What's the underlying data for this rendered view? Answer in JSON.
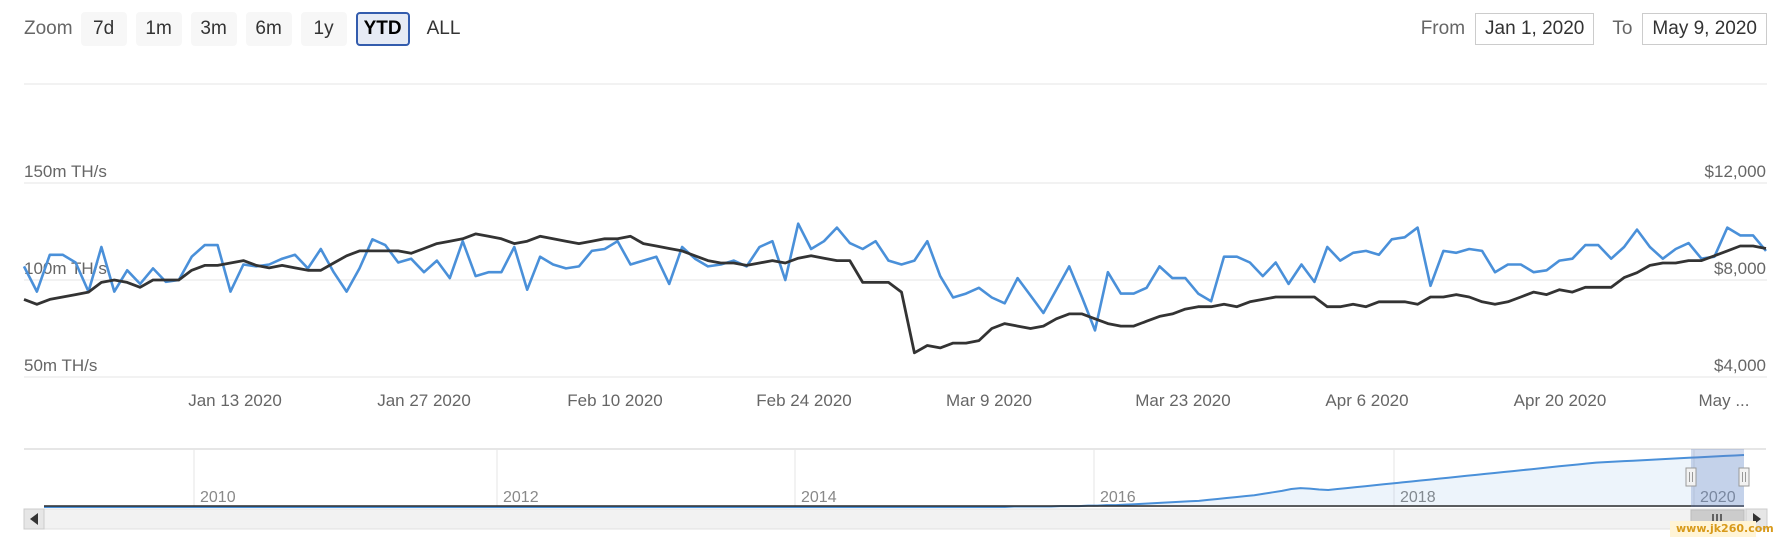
{
  "toolbar": {
    "zoom_label": "Zoom",
    "zoom_buttons": [
      {
        "label": "7d",
        "active": false
      },
      {
        "label": "1m",
        "active": false
      },
      {
        "label": "3m",
        "active": false
      },
      {
        "label": "6m",
        "active": false
      },
      {
        "label": "1y",
        "active": false
      },
      {
        "label": "YTD",
        "active": true
      },
      {
        "label": "ALL",
        "active": false
      }
    ],
    "from_label": "From",
    "from_value": "Jan 1, 2020",
    "to_label": "To",
    "to_value": "May 9, 2020"
  },
  "chart_data": {
    "type": "line",
    "y_left_ticks": [
      "150m TH/s",
      "100m TH/s",
      "50m TH/s"
    ],
    "y_right_ticks": [
      "$12,000",
      "$8,000",
      "$4,000"
    ],
    "y_left_range": [
      50,
      150
    ],
    "y_right_range": [
      4000,
      12000
    ],
    "x_tick_labels": [
      "Jan 13 2020",
      "Jan 27 2020",
      "Feb 10 2020",
      "Feb 24 2020",
      "Mar 9 2020",
      "Mar 23 2020",
      "Apr 6 2020",
      "Apr 20 2020",
      "May ..."
    ],
    "series": [
      {
        "color": "#4a90d9",
        "axis": "left",
        "values": [
          107,
          94,
          113,
          113,
          109,
          94,
          117,
          94,
          105,
          98,
          106,
          99,
          100,
          112,
          118,
          118,
          94,
          108,
          107,
          108,
          111,
          113,
          106,
          116,
          104,
          94,
          106,
          121,
          118,
          109,
          111,
          104,
          110,
          101,
          120,
          102,
          104,
          104,
          117,
          95,
          112,
          108,
          106,
          107,
          115,
          116,
          120,
          108,
          110,
          112,
          98,
          117,
          111,
          107,
          108,
          110,
          107,
          117,
          120,
          100,
          129,
          116,
          120,
          127,
          119,
          116,
          120,
          110,
          108,
          110,
          120,
          102,
          91,
          93,
          96,
          91,
          88,
          101,
          92,
          83,
          95,
          107,
          91,
          74,
          104,
          93,
          93,
          96,
          107,
          101,
          101,
          93,
          89,
          112,
          112,
          109,
          102,
          109,
          98,
          108,
          99,
          117,
          110,
          114,
          115,
          113,
          121,
          122,
          127,
          97,
          115,
          114,
          116,
          115,
          104,
          108,
          108,
          104,
          105,
          110,
          111,
          118,
          118,
          111,
          117,
          126,
          117,
          111,
          116,
          119,
          111,
          112,
          127,
          123,
          123,
          115
        ]
      },
      {
        "color": "#333333",
        "axis": "right",
        "values": [
          7200,
          7000,
          7200,
          7300,
          7400,
          7500,
          7900,
          8000,
          7900,
          7700,
          8000,
          8000,
          8000,
          8400,
          8600,
          8600,
          8700,
          8800,
          8600,
          8500,
          8600,
          8500,
          8400,
          8400,
          8700,
          9000,
          9200,
          9200,
          9200,
          9200,
          9100,
          9300,
          9500,
          9600,
          9700,
          9900,
          9800,
          9700,
          9500,
          9600,
          9800,
          9700,
          9600,
          9500,
          9600,
          9700,
          9700,
          9800,
          9500,
          9400,
          9300,
          9200,
          9000,
          8800,
          8700,
          8700,
          8600,
          8700,
          8800,
          8700,
          8900,
          9000,
          8900,
          8800,
          8800,
          7900,
          7900,
          7900,
          7500,
          5000,
          5300,
          5200,
          5400,
          5400,
          5500,
          6000,
          6200,
          6100,
          6000,
          6100,
          6400,
          6600,
          6600,
          6400,
          6200,
          6100,
          6100,
          6300,
          6500,
          6600,
          6800,
          6900,
          6900,
          7000,
          6900,
          7100,
          7200,
          7300,
          7300,
          7300,
          7300,
          6900,
          6900,
          7000,
          6900,
          7100,
          7100,
          7100,
          7000,
          7300,
          7300,
          7400,
          7300,
          7100,
          7000,
          7100,
          7300,
          7500,
          7400,
          7600,
          7500,
          7700,
          7700,
          7700,
          8100,
          8300,
          8600,
          8700,
          8700,
          8800,
          8800,
          9000,
          9200,
          9400,
          9400,
          9300
        ]
      }
    ],
    "navigator": {
      "x_tick_labels": [
        "2010",
        "2012",
        "2014",
        "2016",
        "2018",
        "2020"
      ],
      "values": [
        0,
        0,
        0,
        0,
        0,
        0,
        0,
        0,
        0,
        0,
        0,
        0,
        0,
        0,
        0,
        0,
        0,
        0,
        0,
        0,
        0,
        0,
        0,
        0,
        0,
        0,
        0,
        0,
        0,
        0,
        0,
        0,
        0,
        0,
        0,
        0,
        0,
        0,
        0,
        0,
        0,
        0,
        0,
        0,
        0,
        0,
        0,
        0,
        0,
        0,
        0,
        0,
        0,
        0,
        0,
        0,
        0,
        0,
        0,
        0,
        0,
        0,
        0,
        0,
        0,
        0,
        0,
        0,
        0,
        0,
        0,
        0,
        0,
        0,
        0,
        0,
        0,
        0,
        0,
        0,
        0,
        0,
        0,
        0,
        0,
        0,
        0,
        0,
        0,
        0,
        0,
        0,
        0,
        0,
        0,
        0,
        0,
        0,
        0,
        0,
        0,
        0,
        0,
        0,
        0,
        1,
        1,
        1,
        1,
        1,
        2,
        2,
        2,
        3,
        3,
        4,
        4,
        5,
        6,
        7,
        8,
        9,
        10,
        11,
        12,
        13,
        15,
        17,
        19,
        21,
        23,
        25,
        28,
        31,
        34,
        38,
        40,
        39,
        37,
        36,
        38,
        40,
        42,
        44,
        46,
        48,
        50,
        52,
        54,
        56,
        58,
        60,
        62,
        64,
        66,
        68,
        70,
        72,
        74,
        76,
        78,
        80,
        82,
        84,
        86,
        88,
        90,
        92,
        94,
        95,
        96,
        97,
        98,
        99,
        100,
        101,
        102,
        103,
        104,
        105,
        106,
        107,
        108,
        109,
        110
      ]
    }
  },
  "watermark": "www.jk260.com"
}
